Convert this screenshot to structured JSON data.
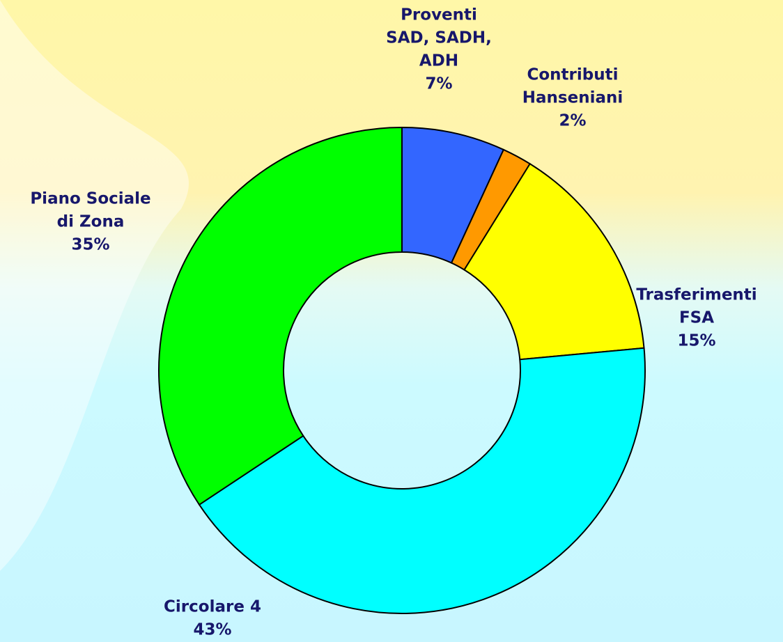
{
  "chart_data": {
    "type": "donut",
    "categories": [
      [
        "Proventi",
        "SAD, SADH,",
        "ADH"
      ],
      [
        "Contributi",
        "Hanseniani"
      ],
      [
        "Trasferimenti",
        "FSA"
      ],
      [
        "Circolare 4"
      ],
      [
        "Piano Sociale",
        "di Zona"
      ]
    ],
    "values": [
      7,
      2,
      15,
      43,
      35
    ],
    "value_labels": [
      "7%",
      "2%",
      "15%",
      "43%",
      "35%"
    ],
    "colors": [
      "#3366ff",
      "#ff9900",
      "#ffff00",
      "#00ffff",
      "#00ff00"
    ]
  }
}
